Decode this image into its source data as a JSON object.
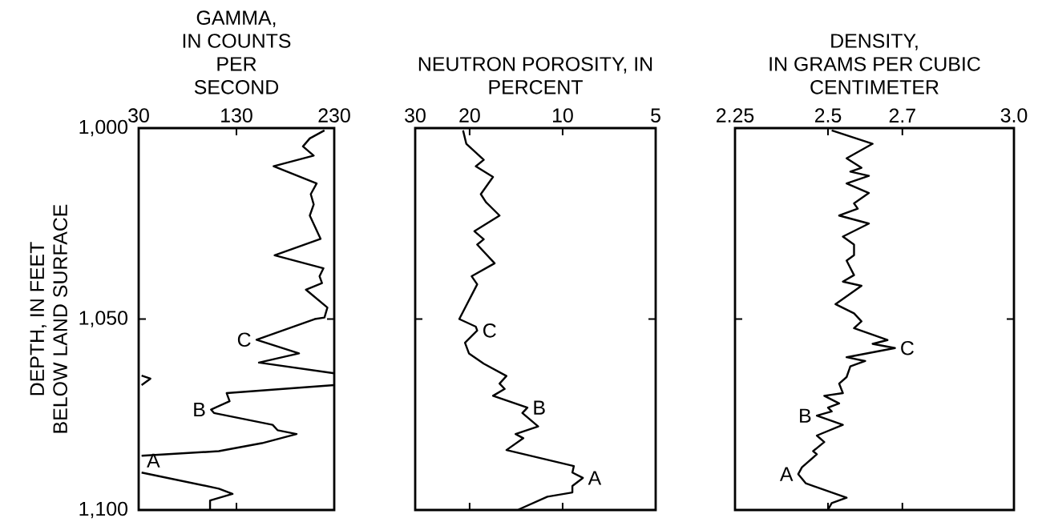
{
  "chart_data": [
    {
      "type": "line",
      "xlabel": "GAMMA, IN COUNTS PER SECOND",
      "ylabel": "DEPTH, IN FEET BELOW LAND SURFACE",
      "xlim": [
        30,
        230
      ],
      "xticks": [
        30,
        130,
        230
      ],
      "ylim": [
        1100,
        1000
      ],
      "yticks": [
        {
          "value": 1000,
          "label": "1,000"
        },
        {
          "value": 1050,
          "label": "1,050"
        },
        {
          "value": 1100,
          "label": "1,100"
        }
      ],
      "series": [
        {
          "color": "#000000",
          "x": [
            220,
            205,
            198,
            209,
            168,
            212,
            206,
            209,
            205,
            216,
            169,
            219,
            215,
            217.5,
            201,
            223,
            220,
            210,
            150.5,
            194,
            153,
            230,
            null,
            33,
            42,
            33,
            null,
            230,
            120,
            123,
            104,
            107,
            167,
            172,
            191.5,
            156,
            112,
            33,
            null,
            33,
            112,
            126,
            103,
            103
          ],
          "values": [
            1000.6,
            1002.7,
            1004.8,
            1007.2,
            1010,
            1014.5,
            1017.3,
            1020,
            1022.9,
            1029,
            1033.3,
            1036.7,
            1038.8,
            1040.6,
            1042.3,
            1047,
            1049.6,
            1050,
            1055.4,
            1059,
            1061.4,
            1064.2,
            null,
            1064.8,
            1065.6,
            1067.3,
            null,
            1067.3,
            1069.4,
            1071.5,
            1073.7,
            1074.6,
            1077.7,
            1079.1,
            1080.1,
            1082.5,
            1084.6,
            1085.8,
            null,
            1090.2,
            1094.4,
            1095.8,
            1097.5,
            1100
          ]
        }
      ],
      "annotations": [
        {
          "text": "C",
          "x": 150.5,
          "y": 1055.4
        },
        {
          "text": "B",
          "x": 104,
          "y": 1073.7
        },
        {
          "text": "A",
          "x": 33,
          "y": 1090.2
        }
      ]
    },
    {
      "type": "line",
      "xlabel": "NEUTRON POROSITY, IN PERCENT",
      "log": "x",
      "xlim": [
        30,
        5
      ],
      "xticks": [
        30,
        20,
        10,
        5
      ],
      "ylim": [
        1100,
        1000
      ],
      "yticks": [
        1050
      ],
      "tick_labels": "x",
      "series": [
        {
          "color": "#000000",
          "x": [
            21,
            20.7,
            20.5,
            18.0,
            19.1,
            16.8,
            18.4,
            17.7,
            16.0,
            19.3,
            18.0,
            18.9,
            16.6,
            19.7,
            18.9,
            21.6,
            19.1,
            18.9,
            20.7,
            20.1,
            18.0,
            15.2,
            16.0,
            15.4,
            16.8,
            13.0,
            13.5,
            12.0,
            14.2,
            13.4,
            15.2,
            9.2,
            9.3,
            8.6,
            9.3,
            9.3,
            11.2,
            13.9
          ],
          "values": [
            1000.6,
            1002.7,
            1004.1,
            1008.3,
            1010,
            1012.8,
            1017.3,
            1019.4,
            1022.9,
            1027,
            1029.1,
            1030.5,
            1035.4,
            1038.8,
            1040.9,
            1050,
            1052,
            1053,
            1056.2,
            1059,
            1061.7,
            1064.9,
            1066.9,
            1068.3,
            1070.1,
            1073.2,
            1074.6,
            1078.1,
            1080.1,
            1081.2,
            1084.3,
            1088.5,
            1090.2,
            1091.6,
            1093.7,
            1095.4,
            1096.5,
            1099.9
          ]
        }
      ],
      "annotations": [
        {
          "text": "C",
          "x": 18.9,
          "y": 1053
        },
        {
          "text": "B",
          "x": 13.0,
          "y": 1073.2
        },
        {
          "text": "A",
          "x": 8.6,
          "y": 1091.6
        }
      ]
    },
    {
      "type": "line",
      "xlabel": "DENSITY, IN GRAMS PER CUBIC CENTIMETER",
      "xlim": [
        2.25,
        3.0
      ],
      "xticks": [
        2.25,
        2.5,
        2.7,
        {
          "value": 3.0,
          "label": "3.0"
        }
      ],
      "ylim": [
        1100,
        1000
      ],
      "yticks": [
        1050
      ],
      "tick_labels": "x",
      "series": [
        {
          "color": "#000000",
          "x": [
            2.51,
            2.62,
            2.55,
            2.59,
            2.56,
            2.61,
            2.55,
            2.61,
            2.57,
            2.58,
            2.53,
            2.61,
            2.54,
            2.57,
            2.57,
            2.55,
            2.57,
            2.54,
            2.59,
            2.52,
            2.57,
            2.59,
            2.57,
            2.66,
            2.62,
            2.68,
            2.55,
            2.6,
            2.56,
            2.55,
            2.53,
            2.54,
            2.49,
            2.53,
            2.5,
            2.51,
            2.47,
            2.54,
            2.47,
            2.49,
            2.46,
            2.47,
            2.43,
            2.42,
            2.44,
            2.55,
            2.51,
            2.5
          ],
          "values": [
            1000.6,
            1004.1,
            1007.9,
            1010.4,
            1011.4,
            1012.5,
            1014.5,
            1017,
            1019.7,
            1021.1,
            1022.9,
            1025,
            1028.4,
            1030.5,
            1033.3,
            1034.7,
            1038.5,
            1040.2,
            1041.3,
            1046.1,
            1048.5,
            1050.6,
            1052.4,
            1055.5,
            1056.5,
            1057.6,
            1060,
            1061,
            1062.4,
            1065.2,
            1066.9,
            1069.4,
            1070.1,
            1072.1,
            1073.2,
            1074.2,
            1075.3,
            1077.7,
            1080.5,
            1082.2,
            1084.6,
            1085.4,
            1088.8,
            1090.6,
            1093,
            1096.8,
            1098.2,
            1099.9
          ]
        }
      ],
      "annotations": [
        {
          "text": "C",
          "x": 2.68,
          "y": 1057.6
        },
        {
          "text": "B",
          "x": 2.47,
          "y": 1075.3
        },
        {
          "text": "A",
          "x": 2.42,
          "y": 1090.6
        }
      ]
    }
  ]
}
